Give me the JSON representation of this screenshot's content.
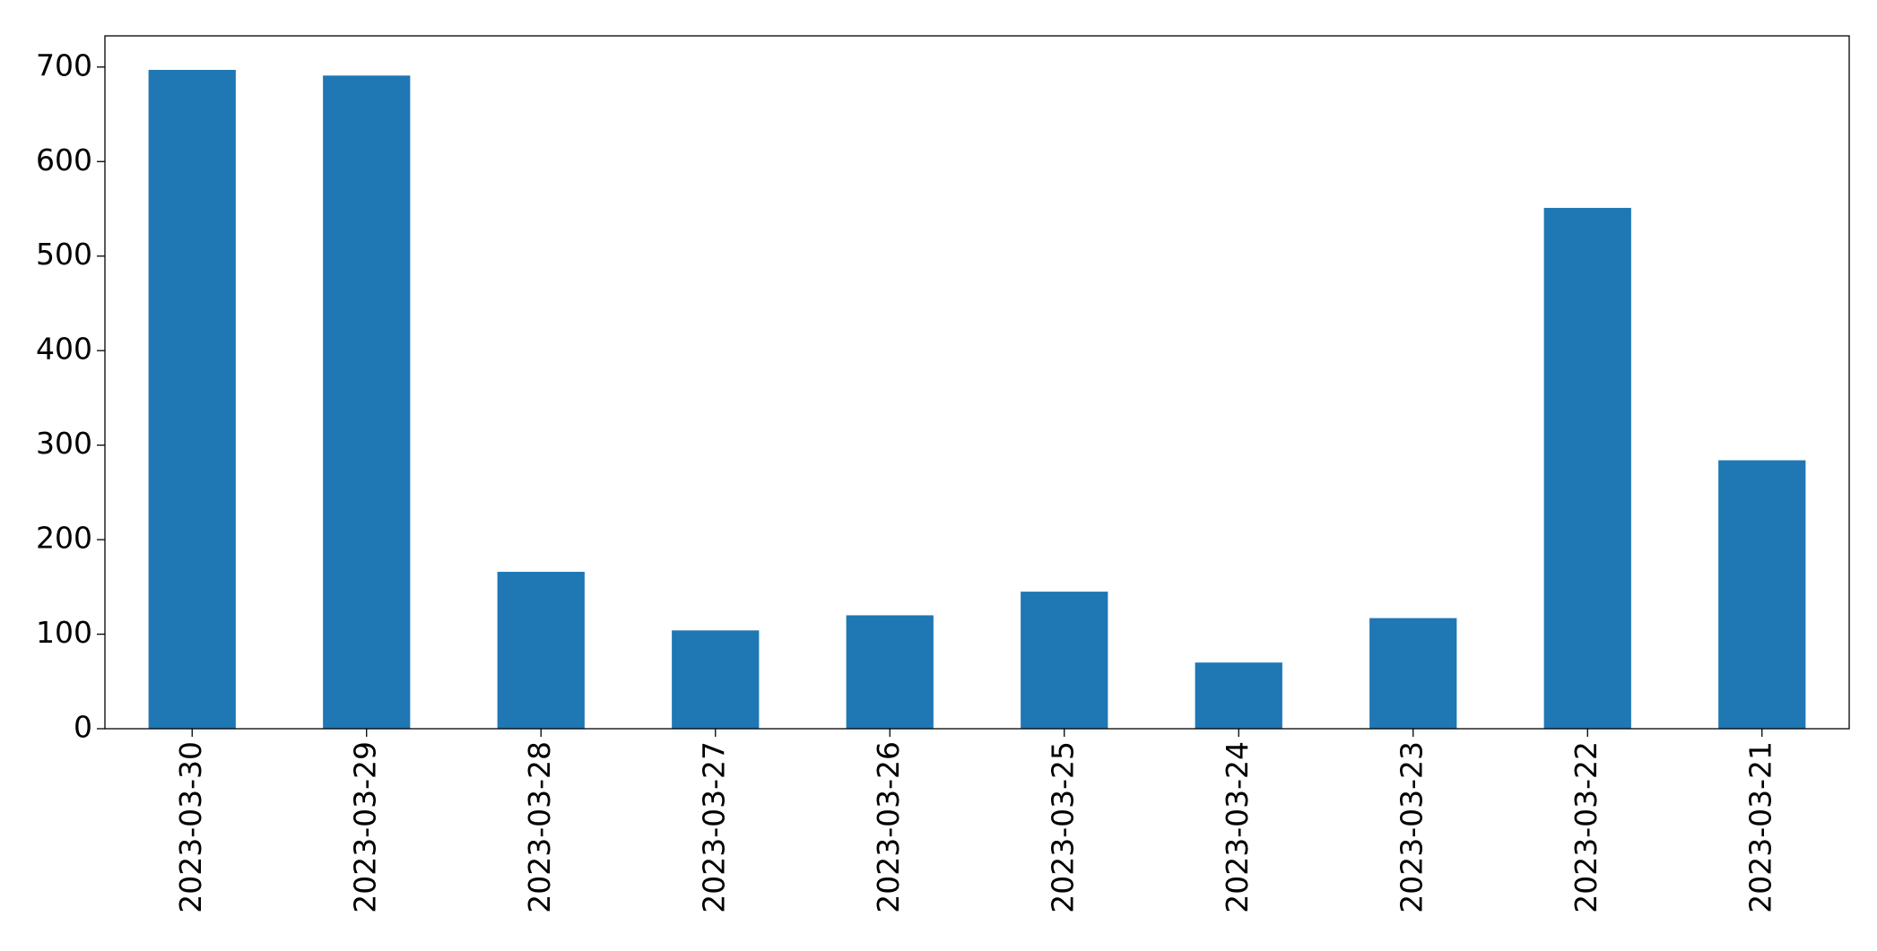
{
  "chart_data": {
    "type": "bar",
    "categories": [
      "2023-03-30",
      "2023-03-29",
      "2023-03-28",
      "2023-03-27",
      "2023-03-26",
      "2023-03-25",
      "2023-03-24",
      "2023-03-23",
      "2023-03-22",
      "2023-03-21"
    ],
    "values": [
      697,
      691,
      166,
      104,
      120,
      145,
      70,
      117,
      551,
      284
    ],
    "color": "#1f77b4",
    "ylim": [
      0,
      733
    ],
    "yticks": [
      0,
      100,
      200,
      300,
      400,
      500,
      600,
      700
    ],
    "grid": false
  }
}
